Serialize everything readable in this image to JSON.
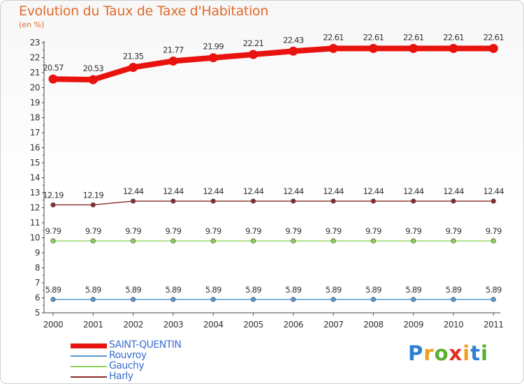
{
  "title": "Evolution du Taux de Taxe d'Habitation",
  "unit_label": "(en %)",
  "logo": {
    "letters": [
      {
        "ch": "P",
        "color": "#2f7fd0"
      },
      {
        "ch": "r",
        "color": "#f0a020"
      },
      {
        "ch": "o",
        "color": "#5ab030"
      },
      {
        "ch": "x",
        "color": "#e03020"
      },
      {
        "ch": "i",
        "color": "#f0a020"
      },
      {
        "ch": "t",
        "color": "#2f7fd0"
      },
      {
        "ch": "i",
        "color": "#5ab030"
      }
    ],
    "text": "Proxiti"
  },
  "chart_data": {
    "type": "line",
    "x": [
      "2000",
      "2001",
      "2002",
      "2003",
      "2004",
      "2005",
      "2006",
      "2007",
      "2008",
      "2009",
      "2010",
      "2011"
    ],
    "ylim": [
      5,
      23
    ],
    "yticks": [
      5,
      6,
      7,
      8,
      9,
      10,
      11,
      12,
      13,
      14,
      15,
      16,
      17,
      18,
      19,
      20,
      21,
      22,
      23
    ],
    "grid": false,
    "series": [
      {
        "name": "SAINT-QUENTIN",
        "color": "#e8120e",
        "values": [
          20.57,
          20.53,
          21.35,
          21.77,
          21.99,
          22.21,
          22.43,
          22.61,
          22.61,
          22.61,
          22.61,
          22.61
        ],
        "labels": [
          "20.57",
          "20.53",
          "21.35",
          "21.77",
          "21.99",
          "22.21",
          "22.43",
          "22.61",
          "22.61",
          "22.61",
          "22.61",
          "22.61"
        ]
      },
      {
        "name": "Harly",
        "color": "#8a2a2a",
        "values": [
          12.19,
          12.19,
          12.44,
          12.44,
          12.44,
          12.44,
          12.44,
          12.44,
          12.44,
          12.44,
          12.44,
          12.44
        ],
        "labels": [
          "12.19",
          "12.19",
          "12.44",
          "12.44",
          "12.44",
          "12.44",
          "12.44",
          "12.44",
          "12.44",
          "12.44",
          "12.44",
          "12.44"
        ]
      },
      {
        "name": "Gauchy",
        "color": "#8dd45a",
        "values": [
          9.79,
          9.79,
          9.79,
          9.79,
          9.79,
          9.79,
          9.79,
          9.79,
          9.79,
          9.79,
          9.79,
          9.79
        ],
        "labels": [
          "9.79",
          "9.79",
          "9.79",
          "9.79",
          "9.79",
          "9.79",
          "9.79",
          "9.79",
          "9.79",
          "9.79",
          "9.79",
          "9.79"
        ]
      },
      {
        "name": "Rouvroy",
        "color": "#5b9bd0",
        "values": [
          5.89,
          5.89,
          5.89,
          5.89,
          5.89,
          5.89,
          5.89,
          5.89,
          5.89,
          5.89,
          5.89,
          5.89
        ],
        "labels": [
          "5.89",
          "5.89",
          "5.89",
          "5.89",
          "5.89",
          "5.89",
          "5.89",
          "5.89",
          "5.89",
          "5.89",
          "5.89",
          "5.89"
        ]
      }
    ],
    "legend": {
      "placement": "bottom-left",
      "order": [
        "SAINT-QUENTIN",
        "Rouvroy",
        "Gauchy",
        "Harly"
      ]
    }
  }
}
